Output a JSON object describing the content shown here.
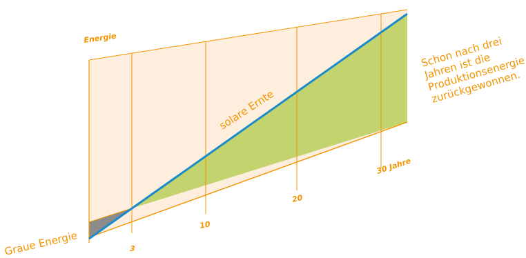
{
  "diagram": {
    "y_axis_label": "Energie",
    "x_ticks": [
      {
        "value": 3,
        "label": "3"
      },
      {
        "value": 10,
        "label": "10"
      },
      {
        "value": 20,
        "label": "20"
      },
      {
        "value": 30,
        "label": "30 Jahre"
      }
    ],
    "labels": {
      "solar_harvest": "solare Ernte",
      "grey_energy": "Graue Energie"
    },
    "caption_lines": [
      "Schon nach drei",
      "Jahren ist die",
      "Produktionsenergie",
      "zurückgewonnen."
    ],
    "colors": {
      "accent": "#f29400",
      "panel": "#fdeedd",
      "harvest": "#c3d46e",
      "grey": "#8c8c8c",
      "yield_line": "#1a8ac9"
    }
  }
}
